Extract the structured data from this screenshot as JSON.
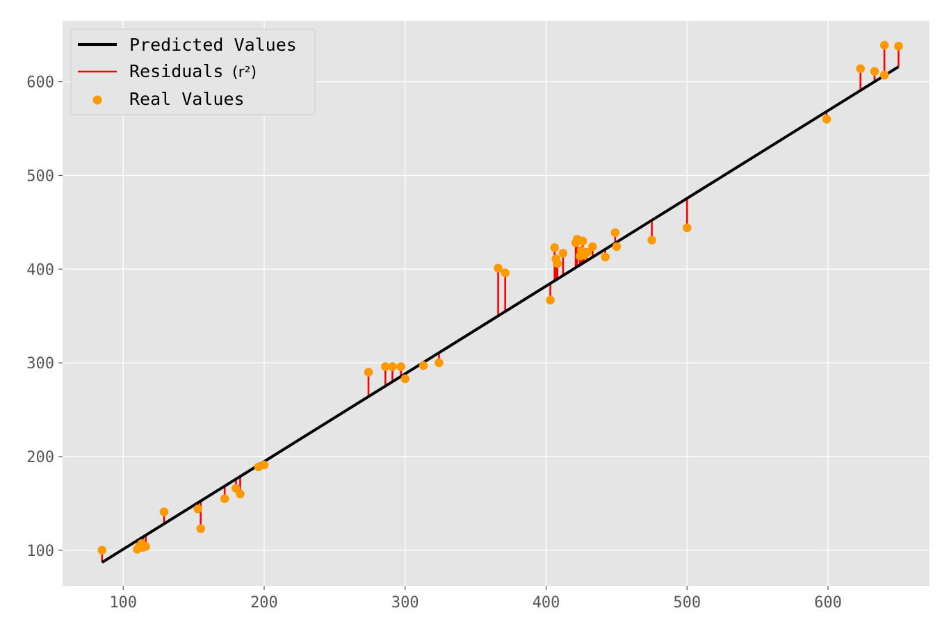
{
  "chart_data": {
    "type": "scatter",
    "title": "",
    "xlabel": "",
    "ylabel": "",
    "xlim": [
      57,
      672
    ],
    "ylim": [
      62,
      665
    ],
    "xticks": [
      100,
      200,
      300,
      400,
      500,
      600
    ],
    "yticks": [
      100,
      200,
      300,
      400,
      500,
      600
    ],
    "grid": true,
    "legend_position": "top-left",
    "colors": {
      "background": "#e5e5e5",
      "grid": "#ffffff",
      "predicted": "#000000",
      "residual": "#ff0000",
      "real": "#ff9900"
    },
    "legend": [
      {
        "label": "Predicted Values",
        "kind": "line"
      },
      {
        "label": "Residuals",
        "suffix": "(r²)",
        "kind": "residual"
      },
      {
        "label": "Real Values",
        "kind": "marker"
      }
    ],
    "series": [
      {
        "name": "Predicted Values",
        "x": [
          85,
          650
        ],
        "y": [
          87,
          616
        ]
      },
      {
        "name": "Real Values",
        "x": [
          85,
          110,
          111,
          112,
          113,
          114,
          116,
          129,
          153,
          155,
          172,
          180,
          183,
          196,
          200,
          274,
          286,
          291,
          297,
          300,
          313,
          324,
          366,
          371,
          403,
          406,
          407,
          408,
          412,
          421,
          422,
          424,
          425,
          426,
          427,
          429,
          433,
          442,
          449,
          450,
          475,
          500,
          599,
          623,
          633,
          640,
          640,
          650
        ],
        "y": [
          100,
          101,
          103,
          105,
          107,
          103,
          104,
          141,
          144,
          123,
          155,
          166,
          160,
          189,
          191,
          290,
          296,
          296,
          296,
          283,
          297,
          300,
          401,
          396,
          367,
          423,
          411,
          406,
          417,
          428,
          432,
          414,
          420,
          430,
          415,
          418,
          424,
          413,
          439,
          424,
          431,
          444,
          560,
          614,
          611,
          607,
          639,
          638
        ]
      }
    ]
  }
}
